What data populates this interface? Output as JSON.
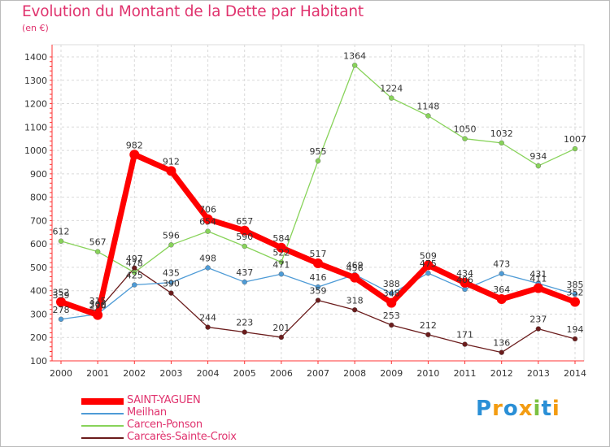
{
  "title": "Evolution du Montant de la Dette par Habitant",
  "subtitle": "(en €)",
  "logo": "Proxiti",
  "chart_data": {
    "type": "line",
    "title": "Evolution du Montant de la Dette par Habitant",
    "subtitle": "(en €)",
    "xlabel": "",
    "ylabel": "",
    "x": [
      "2000",
      "2001",
      "2002",
      "2003",
      "2004",
      "2005",
      "2006",
      "2007",
      "2008",
      "2009",
      "2010",
      "2011",
      "2012",
      "2013",
      "2014"
    ],
    "ylim": [
      100,
      1400
    ],
    "yticks": [
      100,
      200,
      300,
      400,
      500,
      600,
      700,
      800,
      900,
      1000,
      1100,
      1200,
      1300,
      1400
    ],
    "grid": true,
    "legend_position": "bottom-left",
    "series": [
      {
        "name": "SAINT-YAGUEN",
        "color": "#ff0000",
        "values": [
          352,
          296,
          982,
          912,
          706,
          657,
          584,
          517,
          456,
          348,
          509,
          434,
          364,
          411,
          352
        ]
      },
      {
        "name": "Meilhan",
        "color": "#4e9bd6",
        "values": [
          278,
          300,
          425,
          435,
          498,
          437,
          471,
          416,
          469,
          388,
          475,
          406,
          473,
          431,
          385
        ]
      },
      {
        "name": "Carcen-Ponson",
        "color": "#88d35a",
        "values": [
          612,
          567,
          478,
          596,
          654,
          590,
          522,
          955,
          1364,
          1224,
          1148,
          1050,
          1032,
          934,
          1007
        ]
      },
      {
        "name": "Carcarès-Sainte-Croix",
        "color": "#6b1c1c",
        "values": [
          339,
          315,
          497,
          390,
          244,
          223,
          201,
          359,
          318,
          253,
          212,
          171,
          136,
          237,
          194
        ]
      }
    ]
  }
}
